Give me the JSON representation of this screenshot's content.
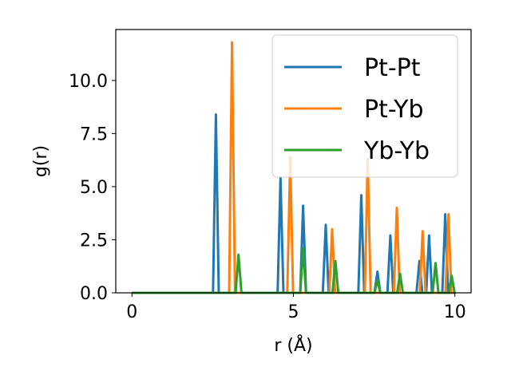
{
  "chart_data": {
    "type": "line",
    "xlabel": "r (Å)",
    "ylabel": "g(r)",
    "xlim": [
      -0.5,
      10.5
    ],
    "ylim": [
      0,
      12.4
    ],
    "xticks": [
      "0",
      "5",
      "10"
    ],
    "xtick_values": [
      0,
      5,
      10
    ],
    "yticks": [
      "0.0",
      "2.5",
      "5.0",
      "7.5",
      "10.0"
    ],
    "ytick_values": [
      0,
      2.5,
      5,
      7.5,
      10
    ],
    "legend_position": "top-right",
    "grid": false,
    "series": [
      {
        "name": "Pt-Pt",
        "color": "#1f77b4",
        "peaks": [
          [
            2.6,
            8.4
          ],
          [
            4.6,
            5.4
          ],
          [
            5.3,
            4.1
          ],
          [
            6.0,
            3.2
          ],
          [
            7.1,
            4.6
          ],
          [
            7.6,
            1.0
          ],
          [
            8.0,
            2.7
          ],
          [
            8.9,
            1.5
          ],
          [
            9.2,
            2.7
          ],
          [
            9.7,
            3.7
          ]
        ]
      },
      {
        "name": "Pt-Yb",
        "color": "#ff7f0e",
        "peaks": [
          [
            3.1,
            11.8
          ],
          [
            4.9,
            6.4
          ],
          [
            6.2,
            3.0
          ],
          [
            7.3,
            6.3
          ],
          [
            8.2,
            4.0
          ],
          [
            9.0,
            2.9
          ],
          [
            9.8,
            3.7
          ]
        ]
      },
      {
        "name": "Yb-Yb",
        "color": "#2ca02c",
        "peaks": [
          [
            3.3,
            1.8
          ],
          [
            5.3,
            2.1
          ],
          [
            6.3,
            1.5
          ],
          [
            7.6,
            0.6
          ],
          [
            8.3,
            0.9
          ],
          [
            9.4,
            1.4
          ],
          [
            9.9,
            0.8
          ]
        ]
      }
    ]
  }
}
